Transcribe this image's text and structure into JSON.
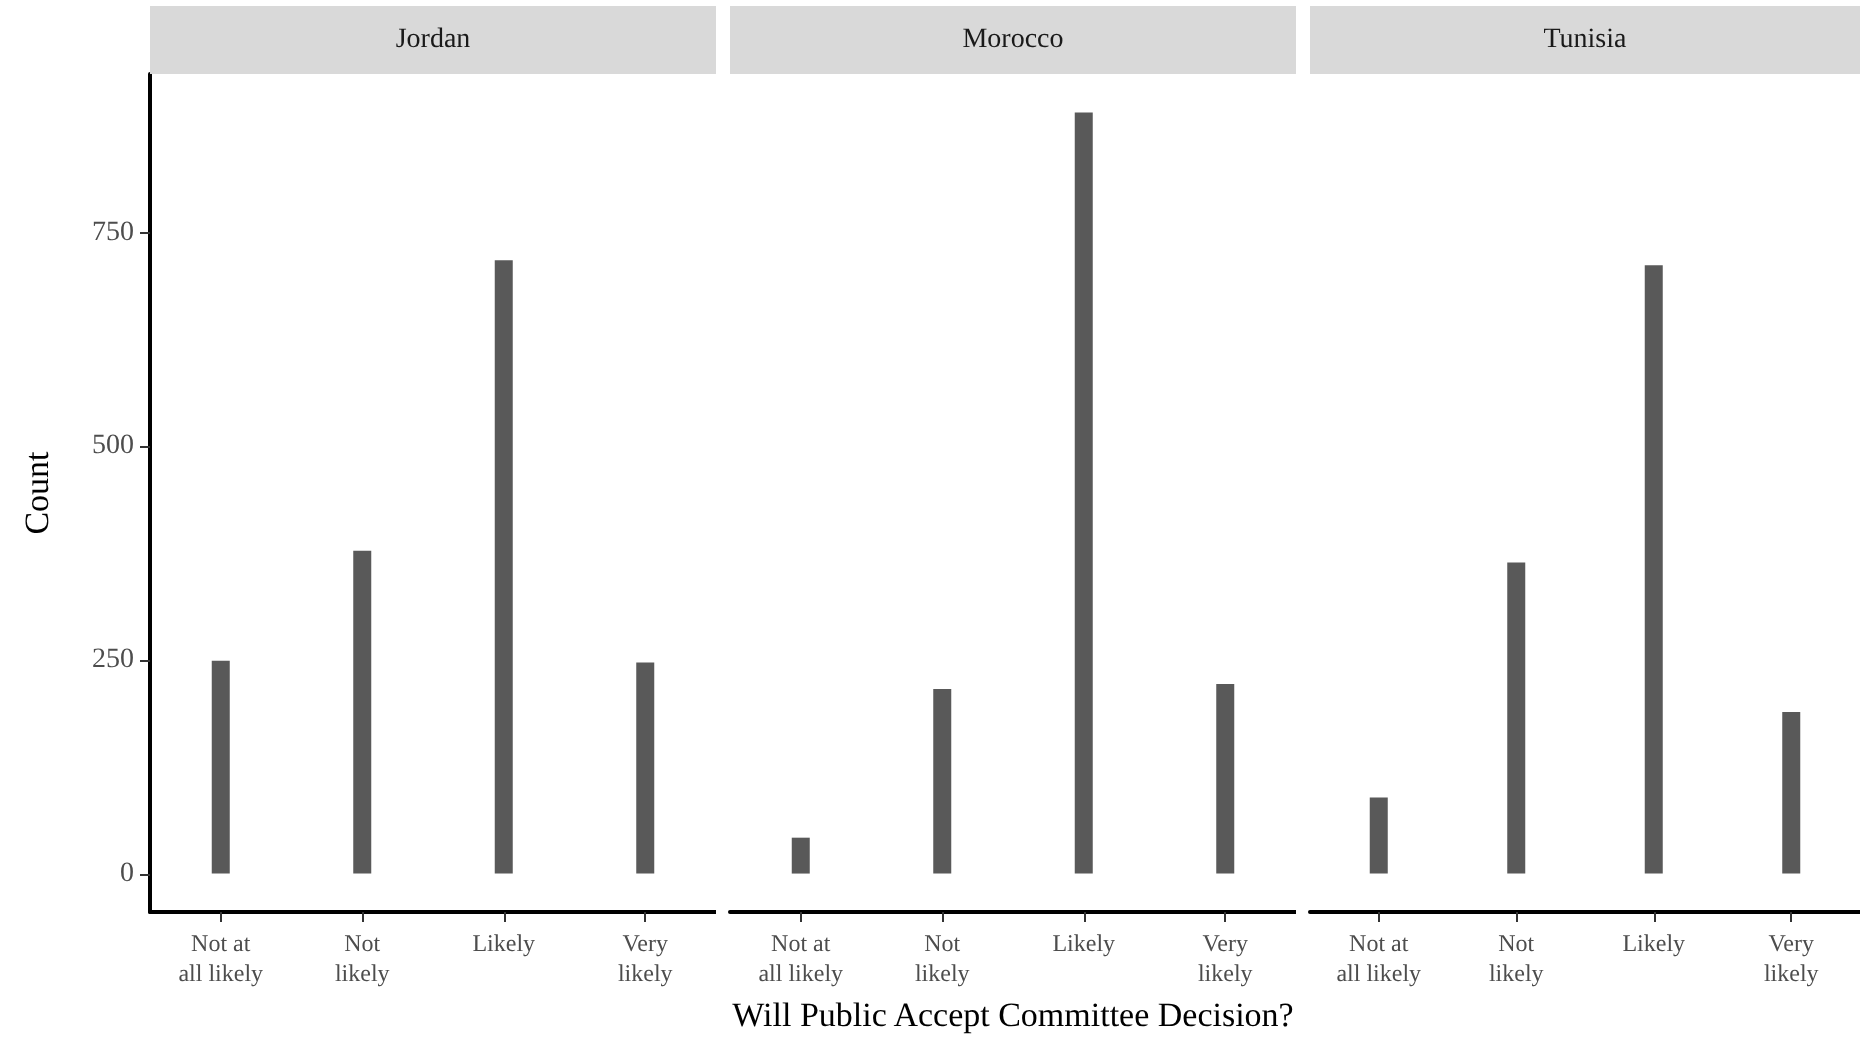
{
  "chart_data": [
    {
      "type": "bar",
      "title": "Jordan",
      "ylabel": "Count",
      "categories": [
        "Not at\nall likely",
        "Not\nlikely",
        "Likely",
        "Very\nlikely"
      ],
      "values": [
        249,
        378,
        718,
        247
      ],
      "color": "#595959",
      "ylim": [
        -45,
        936
      ],
      "yticks": [
        0,
        250,
        500,
        750
      ],
      "grid": false
    },
    {
      "type": "bar",
      "title": "Morocco",
      "xlabel": "Will Public Accept Committee Decision?",
      "categories": [
        "Not at\nall likely",
        "Not\nlikely",
        "Likely",
        "Very\nlikely"
      ],
      "values": [
        42,
        216,
        891,
        222
      ],
      "color": "#595959",
      "yticks": [
        0,
        250,
        500,
        750
      ],
      "grid": false,
      "tick_labels": "x"
    },
    {
      "type": "bar",
      "title": "Tunisia",
      "categories": [
        "Not at\nall likely",
        "Not\nlikely",
        "Likely",
        "Very\nlikely"
      ],
      "values": [
        89,
        364,
        712,
        189
      ],
      "color": "#595959",
      "yticks": [
        0,
        250,
        500,
        750
      ],
      "grid": false,
      "tick_labels": "x"
    }
  ]
}
